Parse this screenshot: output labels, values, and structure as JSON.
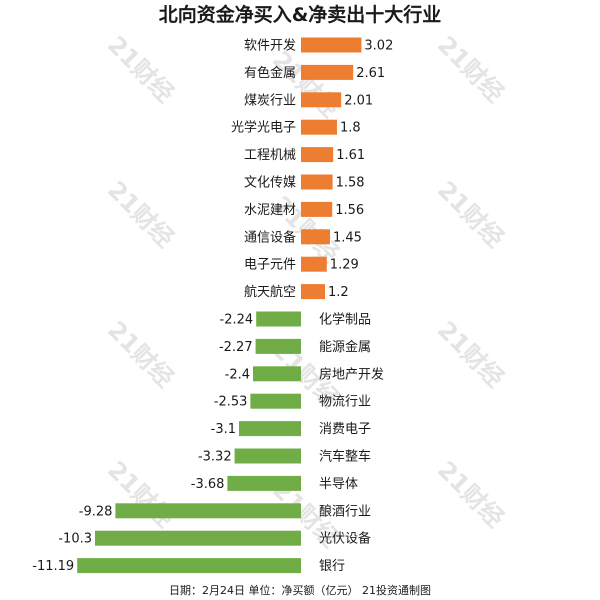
{
  "footer": "日期：2月24日 单位：净买额（亿元） 21投资通制图",
  "watermark": "21财经",
  "colors": {
    "positive": "#ed7d31",
    "negative": "#70ad47"
  },
  "chart_data": {
    "type": "bar",
    "orientation": "horizontal",
    "title": "北向资金净买入&净卖出十大行业",
    "categories": [
      "软件开发",
      "有色金属",
      "煤炭行业",
      "光学光电子",
      "工程机械",
      "文化传媒",
      "水泥建材",
      "通信设备",
      "电子元件",
      "航天航空",
      "化学制品",
      "能源金属",
      "房地产开发",
      "物流行业",
      "消费电子",
      "汽车整车",
      "半导体",
      "酿酒行业",
      "光伏设备",
      "银行"
    ],
    "values": [
      3.02,
      2.61,
      2.01,
      1.8,
      1.61,
      1.58,
      1.56,
      1.45,
      1.29,
      1.2,
      -2.24,
      -2.27,
      -2.4,
      -2.53,
      -3.1,
      -3.32,
      -3.68,
      -9.28,
      -10.3,
      -11.19
    ],
    "value_labels": [
      "3.02",
      "2.61",
      "2.01",
      "1.8",
      "1.61",
      "1.58",
      "1.56",
      "1.45",
      "1.29",
      "1.2",
      "-2.24",
      "-2.27",
      "-2.4",
      "-2.53",
      "-3.1",
      "-3.32",
      "-3.68",
      "-9.28",
      "-10.3",
      "-11.19"
    ],
    "xlim": [
      -12,
      12
    ],
    "grid": false,
    "legend": "none"
  }
}
